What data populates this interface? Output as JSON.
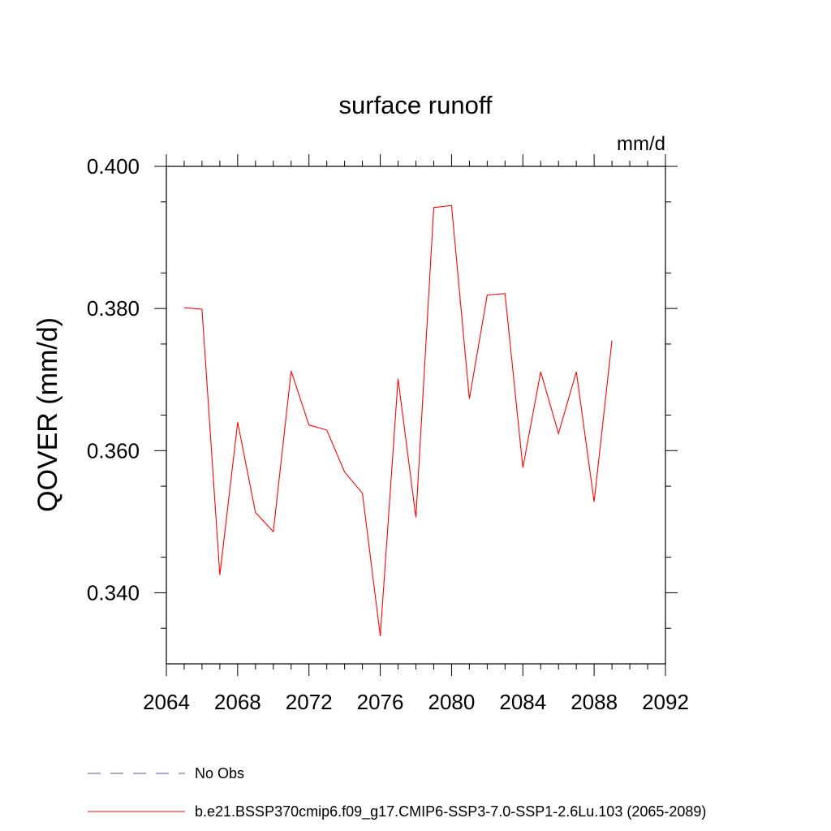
{
  "chart_data": {
    "type": "line",
    "title": "surface runoff",
    "units_label": "mm/d",
    "xlabel": "",
    "ylabel": "QOVER  (mm/d)",
    "xlim": [
      2064,
      2092
    ],
    "ylim": [
      0.33,
      0.4
    ],
    "x_ticks": [
      "2064",
      "2068",
      "2072",
      "2076",
      "2080",
      "2084",
      "2088",
      "2092"
    ],
    "y_ticks": [
      "0.340",
      "0.360",
      "0.380",
      "0.400"
    ],
    "grid": false,
    "legend_position": "bottom",
    "series": [
      {
        "name": "No Obs",
        "color": "#5b4da8",
        "dash": "dashed",
        "x": [],
        "values": []
      },
      {
        "name": "b.e21.BSSP370cmip6.f09_g17.CMIP6-SSP3-7.0-SSP1-2.6Lu.103 (2065-2089)",
        "color": "#ff0000",
        "dash": "solid",
        "x": [
          2065,
          2066,
          2067,
          2068,
          2069,
          2070,
          2071,
          2072,
          2073,
          2074,
          2075,
          2076,
          2077,
          2078,
          2079,
          2080,
          2081,
          2082,
          2083,
          2084,
          2085,
          2086,
          2087,
          2088,
          2089
        ],
        "values": [
          0.3801,
          0.3799,
          0.3425,
          0.364,
          0.3513,
          0.3486,
          0.3712,
          0.3636,
          0.3629,
          0.357,
          0.354,
          0.3339,
          0.3701,
          0.3506,
          0.3942,
          0.3945,
          0.3673,
          0.3819,
          0.3821,
          0.3576,
          0.3711,
          0.3624,
          0.3711,
          0.3528,
          0.3755
        ]
      }
    ]
  }
}
